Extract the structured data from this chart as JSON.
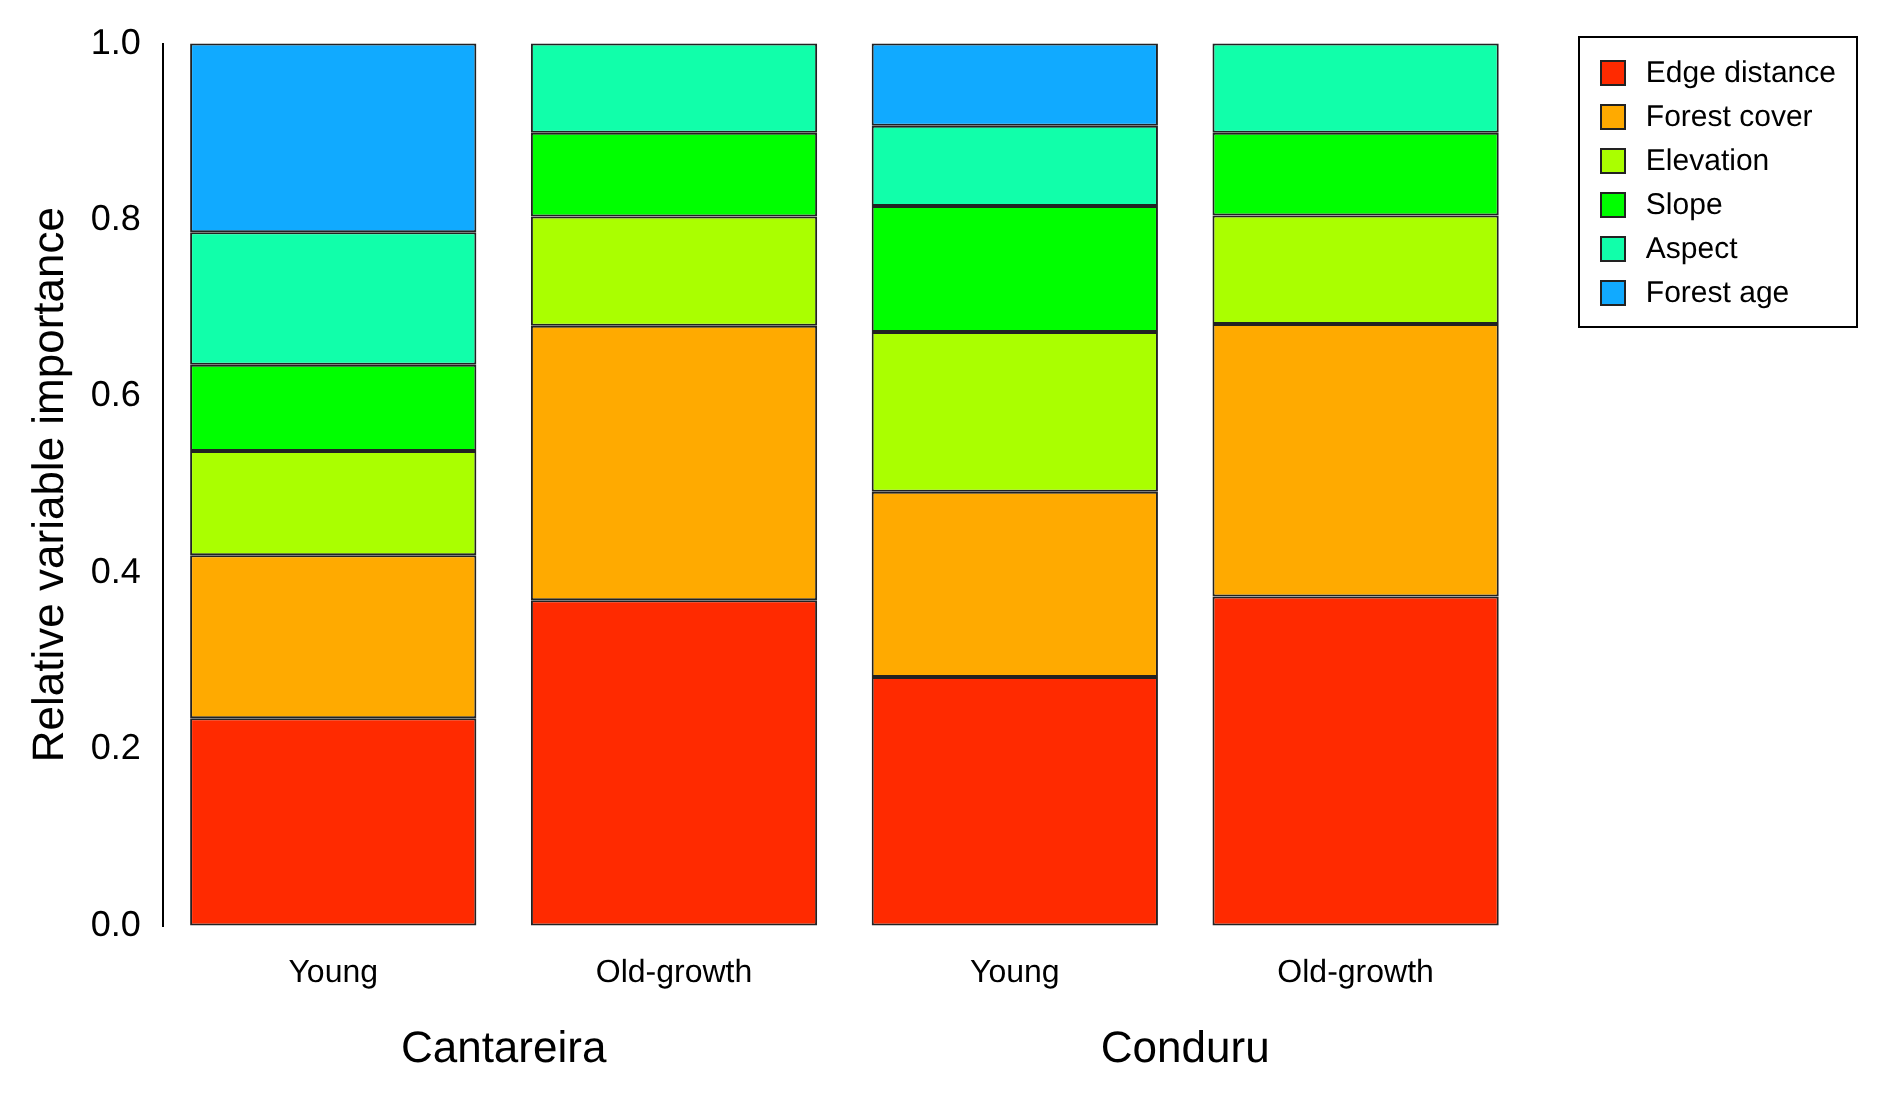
{
  "chart_data": {
    "type": "bar",
    "stacked": true,
    "ylabel": "Relative variable importance",
    "categories": [
      "Young",
      "Old-growth",
      "Young",
      "Old-growth"
    ],
    "series": [
      {
        "name": "Edge distance",
        "color": "#ff2a00",
        "values": [
          0.235,
          0.369,
          0.282,
          0.373
        ]
      },
      {
        "name": "Forest cover",
        "color": "#ffaa00",
        "values": [
          0.185,
          0.311,
          0.21,
          0.309
        ]
      },
      {
        "name": "Elevation",
        "color": "#aaff00",
        "values": [
          0.118,
          0.124,
          0.181,
          0.123
        ]
      },
      {
        "name": "Slope",
        "color": "#00ff00",
        "values": [
          0.098,
          0.095,
          0.143,
          0.094
        ]
      },
      {
        "name": "Aspect",
        "color": "#11ffaa",
        "values": [
          0.15,
          0.101,
          0.091,
          0.101
        ]
      },
      {
        "name": "Forest age",
        "color": "#11aaff",
        "values": [
          0.214,
          null,
          0.093,
          null
        ]
      }
    ],
    "ylim": [
      0,
      1
    ],
    "yticks": [
      {
        "value": 0,
        "label": "0.0"
      },
      {
        "value": 0.2,
        "label": "0.2"
      },
      {
        "value": 0.4,
        "label": "0.4"
      },
      {
        "value": 0.6,
        "label": "0.6"
      },
      {
        "value": 0.8,
        "label": "0.8"
      },
      {
        "value": 1,
        "label": "1.0"
      }
    ],
    "annotations": [
      "Cantareira",
      "Conduru"
    ],
    "grid": false,
    "legend": "top right"
  }
}
